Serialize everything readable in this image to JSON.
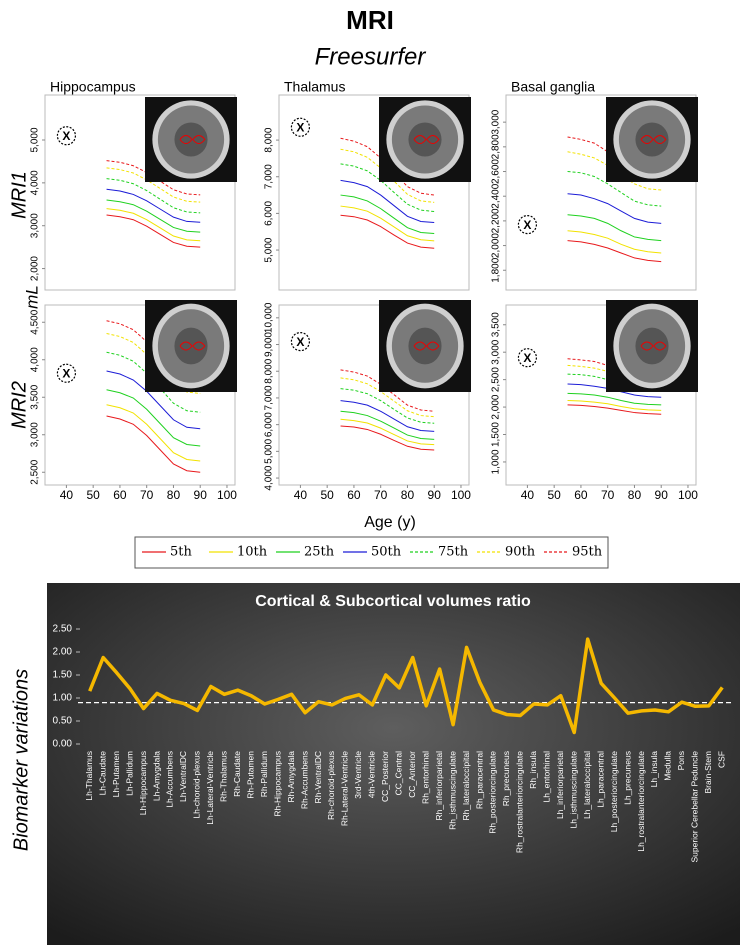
{
  "figure": {
    "title": "MRI",
    "subtitle": "Freesurfer",
    "row_labels": [
      "MRI1",
      "MRI2"
    ],
    "ylabel": "mL",
    "xlabel": "Age (y)",
    "legend": [
      {
        "name": "5th",
        "color": "#e8191c",
        "dash": false
      },
      {
        "name": "10th",
        "color": "#f2e200",
        "dash": false
      },
      {
        "name": "25th",
        "color": "#1fd11f",
        "dash": false
      },
      {
        "name": "50th",
        "color": "#1c1cd6",
        "dash": false
      },
      {
        "name": "75th",
        "color": "#1fd11f",
        "dash": true
      },
      {
        "name": "90th",
        "color": "#f2e200",
        "dash": true
      },
      {
        "name": "95th",
        "color": "#e8191c",
        "dash": true
      }
    ]
  },
  "chart_data": [
    {
      "type": "line",
      "title": "Hippocampus",
      "x": [
        55,
        60,
        65,
        70,
        75,
        80,
        85,
        90
      ],
      "xlim": [
        32,
        103
      ],
      "ylim": [
        1500,
        6050
      ],
      "yticks": [
        {
          "value": 2000,
          "label": "2,000"
        },
        {
          "value": 3000,
          "label": "3,000"
        },
        {
          "value": 4000,
          "label": "4,000"
        },
        {
          "value": 5000,
          "label": "5,000"
        }
      ],
      "marker": {
        "label": "X",
        "x": 40,
        "y": 5100
      },
      "series": [
        {
          "values": [
            3250,
            3210,
            3140,
            2990,
            2800,
            2610,
            2520,
            2500
          ]
        },
        {
          "values": [
            3400,
            3360,
            3290,
            3140,
            2950,
            2760,
            2670,
            2650
          ]
        },
        {
          "values": [
            3600,
            3560,
            3490,
            3340,
            3150,
            2960,
            2870,
            2850
          ]
        },
        {
          "values": [
            3850,
            3810,
            3730,
            3580,
            3390,
            3200,
            3100,
            3080
          ]
        },
        {
          "values": [
            4100,
            4060,
            3980,
            3820,
            3620,
            3420,
            3320,
            3300
          ]
        },
        {
          "values": [
            4350,
            4310,
            4230,
            4070,
            3870,
            3670,
            3570,
            3550
          ]
        },
        {
          "values": [
            4520,
            4480,
            4400,
            4240,
            4040,
            3840,
            3740,
            3720
          ]
        }
      ]
    },
    {
      "type": "line",
      "title": "Thalamus",
      "x": [
        55,
        60,
        65,
        70,
        75,
        80,
        85,
        90
      ],
      "xlim": [
        32,
        103
      ],
      "ylim": [
        3910,
        9230
      ],
      "yticks": [
        {
          "value": 5000,
          "label": "5,000"
        },
        {
          "value": 6000,
          "label": "6,000"
        },
        {
          "value": 7000,
          "label": "7,000"
        },
        {
          "value": 8000,
          "label": "8,000"
        }
      ],
      "marker": {
        "label": "X",
        "x": 40,
        "y": 8350
      },
      "series": [
        {
          "values": [
            5950,
            5910,
            5820,
            5640,
            5410,
            5190,
            5080,
            5050
          ]
        },
        {
          "values": [
            6200,
            6150,
            6060,
            5870,
            5630,
            5390,
            5280,
            5250
          ]
        },
        {
          "values": [
            6500,
            6450,
            6340,
            6130,
            5870,
            5610,
            5480,
            5450
          ]
        },
        {
          "values": [
            6900,
            6840,
            6730,
            6500,
            6210,
            5920,
            5780,
            5750
          ]
        },
        {
          "values": [
            7350,
            7290,
            7160,
            6900,
            6570,
            6250,
            6090,
            6050
          ]
        },
        {
          "values": [
            7750,
            7680,
            7530,
            7240,
            6880,
            6520,
            6340,
            6300
          ]
        },
        {
          "values": [
            8050,
            7970,
            7820,
            7510,
            7120,
            6730,
            6550,
            6500
          ]
        }
      ]
    },
    {
      "type": "line",
      "title": "Basal ganglia",
      "x": [
        55,
        60,
        65,
        70,
        75,
        80,
        85,
        90
      ],
      "xlim": [
        32,
        103
      ],
      "ylim": [
        1640,
        3220
      ],
      "yticks": [
        {
          "value": 1800,
          "label": "1,800"
        },
        {
          "value": 2000,
          "label": "2,000"
        },
        {
          "value": 2200,
          "label": "2,200"
        },
        {
          "value": 2400,
          "label": "2,400"
        },
        {
          "value": 2600,
          "label": "2,600"
        },
        {
          "value": 2800,
          "label": "2,800"
        },
        {
          "value": 3000,
          "label": "3,000"
        }
      ],
      "marker": {
        "label": "X",
        "x": 40,
        "y": 2170
      },
      "series": [
        {
          "values": [
            2040,
            2030,
            2010,
            1980,
            1940,
            1900,
            1880,
            1870
          ]
        },
        {
          "values": [
            2120,
            2110,
            2090,
            2060,
            2010,
            1970,
            1950,
            1940
          ]
        },
        {
          "values": [
            2250,
            2240,
            2220,
            2180,
            2120,
            2070,
            2050,
            2040
          ]
        },
        {
          "values": [
            2420,
            2410,
            2380,
            2340,
            2280,
            2220,
            2190,
            2180
          ]
        },
        {
          "values": [
            2600,
            2590,
            2560,
            2500,
            2430,
            2360,
            2330,
            2320
          ]
        },
        {
          "values": [
            2760,
            2740,
            2710,
            2650,
            2570,
            2500,
            2460,
            2450
          ]
        },
        {
          "values": [
            2880,
            2860,
            2830,
            2760,
            2680,
            2590,
            2550,
            2540
          ]
        }
      ]
    },
    {
      "type": "line",
      "x": [
        55,
        60,
        65,
        70,
        75,
        80,
        85,
        90
      ],
      "xlim": [
        32,
        103
      ],
      "xticks": [
        40,
        50,
        60,
        70,
        80,
        90,
        100
      ],
      "ylim": [
        2330,
        4730
      ],
      "yticks": [
        {
          "value": 2500,
          "label": "2,500"
        },
        {
          "value": 3000,
          "label": "3,000"
        },
        {
          "value": 3500,
          "label": "3,500"
        },
        {
          "value": 4000,
          "label": "4,000"
        },
        {
          "value": 4500,
          "label": "4,500"
        }
      ],
      "marker": {
        "label": "X",
        "x": 40,
        "y": 3820
      },
      "series": [
        {
          "values": [
            3250,
            3210,
            3140,
            2990,
            2800,
            2610,
            2520,
            2500
          ]
        },
        {
          "values": [
            3400,
            3360,
            3290,
            3140,
            2950,
            2760,
            2670,
            2650
          ]
        },
        {
          "values": [
            3600,
            3560,
            3490,
            3340,
            3150,
            2960,
            2870,
            2850
          ]
        },
        {
          "values": [
            3850,
            3810,
            3730,
            3580,
            3390,
            3200,
            3100,
            3080
          ]
        },
        {
          "values": [
            4100,
            4060,
            3980,
            3820,
            3620,
            3420,
            3320,
            3300
          ]
        },
        {
          "values": [
            4350,
            4310,
            4230,
            4070,
            3870,
            3670,
            3570,
            3550
          ]
        },
        {
          "values": [
            4520,
            4480,
            4400,
            4240,
            4040,
            3840,
            3740,
            3720
          ]
        }
      ]
    },
    {
      "type": "line",
      "x": [
        55,
        60,
        65,
        70,
        75,
        80,
        85,
        90
      ],
      "xlim": [
        32,
        103
      ],
      "xticks": [
        40,
        50,
        60,
        70,
        80,
        90,
        100
      ],
      "ylim": [
        3740,
        10480
      ],
      "yticks": [
        {
          "value": 4000,
          "label": "4,000"
        },
        {
          "value": 5000,
          "label": "5,000"
        },
        {
          "value": 6000,
          "label": "6,000"
        },
        {
          "value": 7000,
          "label": "7,000"
        },
        {
          "value": 8000,
          "label": "8,000"
        },
        {
          "value": 9000,
          "label": "9,000"
        },
        {
          "value": 10000,
          "label": "10,000"
        }
      ],
      "marker": {
        "label": "X",
        "x": 40,
        "y": 9110
      },
      "series": [
        {
          "values": [
            5950,
            5910,
            5820,
            5640,
            5410,
            5190,
            5080,
            5050
          ]
        },
        {
          "values": [
            6200,
            6150,
            6060,
            5870,
            5630,
            5390,
            5280,
            5250
          ]
        },
        {
          "values": [
            6500,
            6450,
            6340,
            6130,
            5870,
            5610,
            5480,
            5450
          ]
        },
        {
          "values": [
            6900,
            6840,
            6730,
            6500,
            6210,
            5920,
            5780,
            5750
          ]
        },
        {
          "values": [
            7350,
            7290,
            7160,
            6900,
            6570,
            6250,
            6090,
            6050
          ]
        },
        {
          "values": [
            7750,
            7680,
            7530,
            7240,
            6880,
            6520,
            6340,
            6300
          ]
        },
        {
          "values": [
            8050,
            7970,
            7820,
            7510,
            7120,
            6730,
            6550,
            6500
          ]
        }
      ]
    },
    {
      "type": "line",
      "x": [
        55,
        60,
        65,
        70,
        75,
        80,
        85,
        90
      ],
      "xlim": [
        32,
        103
      ],
      "xticks": [
        40,
        50,
        60,
        70,
        80,
        90,
        100
      ],
      "ylim": [
        580,
        3860
      ],
      "yticks": [
        {
          "value": 1000,
          "label": "1,000"
        },
        {
          "value": 1500,
          "label": "1,500"
        },
        {
          "value": 2000,
          "label": "2,000"
        },
        {
          "value": 2500,
          "label": "2,500"
        },
        {
          "value": 3000,
          "label": "3,000"
        },
        {
          "value": 3500,
          "label": "3,500"
        }
      ],
      "marker": {
        "label": "X",
        "x": 40,
        "y": 2900
      },
      "series": [
        {
          "values": [
            2040,
            2030,
            2010,
            1980,
            1940,
            1900,
            1880,
            1870
          ]
        },
        {
          "values": [
            2120,
            2110,
            2090,
            2060,
            2010,
            1970,
            1950,
            1940
          ]
        },
        {
          "values": [
            2250,
            2240,
            2220,
            2180,
            2120,
            2070,
            2050,
            2040
          ]
        },
        {
          "values": [
            2420,
            2410,
            2380,
            2340,
            2280,
            2220,
            2190,
            2180
          ]
        },
        {
          "values": [
            2600,
            2590,
            2560,
            2500,
            2430,
            2360,
            2330,
            2320
          ]
        },
        {
          "values": [
            2760,
            2740,
            2710,
            2650,
            2570,
            2500,
            2460,
            2450
          ]
        },
        {
          "values": [
            2880,
            2860,
            2830,
            2760,
            2680,
            2590,
            2550,
            2540
          ]
        }
      ]
    },
    {
      "type": "line",
      "title": "Cortical & Subcortical volumes ratio",
      "ylabel": "Biomarker variations",
      "color": "#f5b800",
      "ylim": [
        0,
        2.5
      ],
      "ref_line": 0.9,
      "yticks": [
        {
          "value": 0,
          "label": "0.00"
        },
        {
          "value": 0.5,
          "label": "0.50"
        },
        {
          "value": 1,
          "label": "1.00"
        },
        {
          "value": 1.5,
          "label": "1.50"
        },
        {
          "value": 2,
          "label": "2.00"
        },
        {
          "value": 2.5,
          "label": "2.50"
        }
      ],
      "categories": [
        "Lh-Thalamus",
        "Lh-Caudate",
        "Lh-Putamen",
        "Lh-Pallidum",
        "Lh-Hippocampus",
        "Lh-Amygdala",
        "Lh-Accumbens",
        "Lh-VentralDC",
        "Lh-choroid-plexus",
        "Lh-Lateral-Ventricle",
        "Rh-Thalamus",
        "Rh-Caudate",
        "Rh-Putamen",
        "Rh-Pallidum",
        "Rh-Hippocampus",
        "Rh-Amygdala",
        "Rh-Accumbens",
        "Rh-VentralDC",
        "Rh-choroid-plexus",
        "Rh-Lateral-Ventricle",
        "3rd-Ventricle",
        "4th-Ventricle",
        "CC_Posterior",
        "CC_Central",
        "CC_Anterior",
        "Rh_entorhinal",
        "Rh_inferiorparietal",
        "Rh_isthmuscingulate",
        "Rh_lateraloccipital",
        "Rh_paracentral",
        "Rh_posteriorcingulate",
        "Rh_precuneus",
        "Rh_rostralanteriorcingulate",
        "Rh_insula",
        "Lh_entorhinal",
        "Lh_inferiorparietal",
        "Lh_isthmuscingulate",
        "Lh_lateraloccipital",
        "Lh_paracentral",
        "Lh_posteriorcingulate",
        "Lh_precuneus",
        "Lh_rostralanteriorcingulate",
        "Lh_insula",
        "Medulla",
        "Pons",
        "Superior Cerebellar Peduncle",
        "Brain-Stem",
        "CSF"
      ],
      "values": [
        1.15,
        1.88,
        1.55,
        1.2,
        0.77,
        1.1,
        0.95,
        0.88,
        0.73,
        1.25,
        1.08,
        1.17,
        1.05,
        0.87,
        0.97,
        1.08,
        0.68,
        0.92,
        0.85,
        0.99,
        1.07,
        0.85,
        1.5,
        1.22,
        1.88,
        0.83,
        1.63,
        0.42,
        2.1,
        1.33,
        0.74,
        0.64,
        0.62,
        0.87,
        0.85,
        1.05,
        0.25,
        2.28,
        1.32,
        1.0,
        0.67,
        0.72,
        0.74,
        0.7,
        0.91,
        0.82,
        0.83,
        1.23
      ]
    }
  ]
}
